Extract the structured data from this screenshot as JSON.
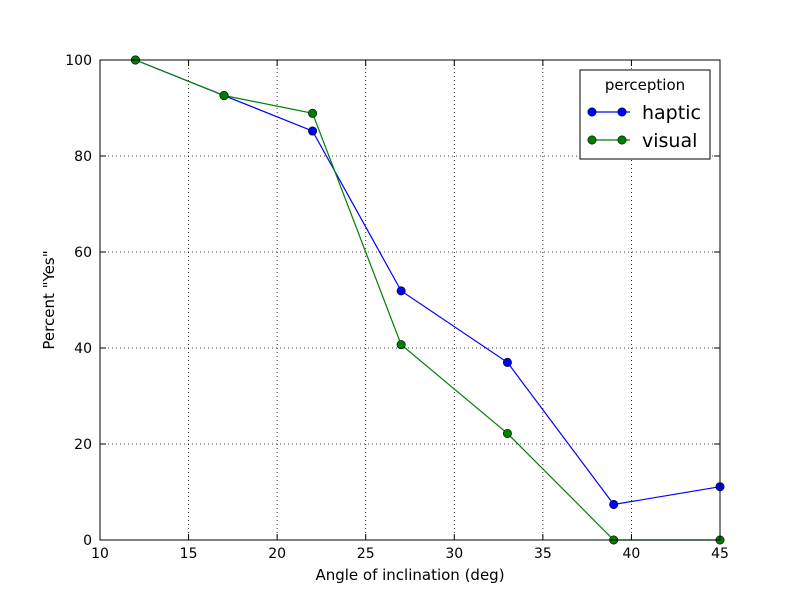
{
  "chart_data": {
    "type": "line",
    "xlabel": "Angle of inclination (deg)",
    "ylabel": "Percent \"Yes\"",
    "xlim": [
      10,
      45
    ],
    "ylim": [
      0,
      100
    ],
    "xticks": [
      10,
      15,
      20,
      25,
      30,
      35,
      40,
      45
    ],
    "yticks": [
      0,
      20,
      40,
      60,
      80,
      100
    ],
    "grid": true,
    "legend": {
      "title": "perception",
      "placement": "top-right"
    },
    "x": [
      12,
      17,
      22,
      27,
      33,
      39,
      45
    ],
    "series": [
      {
        "name": "haptic",
        "color": "#0000ff",
        "values": [
          100,
          92.6,
          85.2,
          51.9,
          37.0,
          7.4,
          11.1
        ]
      },
      {
        "name": "visual",
        "color": "#008000",
        "values": [
          100,
          92.6,
          88.9,
          40.7,
          22.2,
          0,
          0
        ]
      }
    ]
  }
}
